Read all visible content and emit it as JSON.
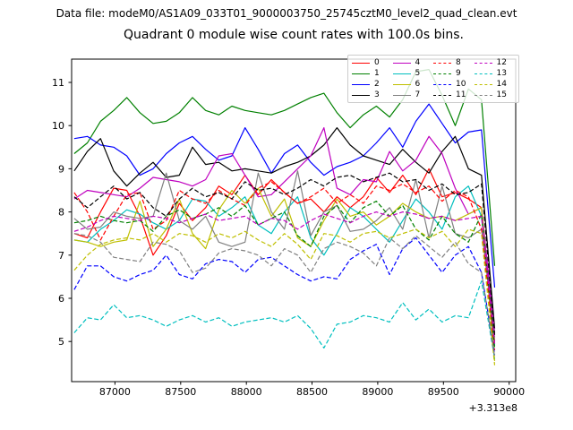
{
  "header": {
    "data_file": "Data file: modeM0/AS1A09_033T01_9000003750_25745cztM0_level2_quad_clean.evt"
  },
  "chart_data": {
    "type": "line",
    "title": "Quadrant 0 module wise count rates with 100.0s bins.",
    "xlabel": "",
    "ylabel": "",
    "x_offset_label": "+3.313e8",
    "bin_seconds": 100.0,
    "x_start": 86690,
    "x_step": 100,
    "xlim": [
      86670,
      90050
    ],
    "ylim": [
      4.07,
      11.54
    ],
    "xticks": [
      87000,
      87500,
      88000,
      88500,
      89000,
      89500,
      90000
    ],
    "yticks": [
      5,
      6,
      7,
      8,
      9,
      10,
      11
    ],
    "grid": false,
    "legend": {
      "position": "upper right",
      "columns": 4,
      "order": "column-major"
    },
    "series": [
      {
        "name": "0",
        "color": "#ff0000",
        "dash": false,
        "values": [
          7.5,
          7.4,
          8.0,
          8.55,
          8.5,
          7.9,
          7.0,
          7.45,
          8.2,
          7.8,
          8.1,
          8.6,
          8.4,
          8.85,
          8.4,
          8.75,
          8.45,
          8.2,
          8.3,
          8.0,
          8.35,
          8.1,
          8.35,
          8.8,
          8.45,
          8.85,
          8.4,
          9.0,
          8.35,
          8.45,
          8.3,
          8.1,
          5.0
        ]
      },
      {
        "name": "1",
        "color": "#008000",
        "dash": false,
        "values": [
          9.35,
          9.6,
          10.1,
          10.35,
          10.65,
          10.3,
          10.05,
          10.1,
          10.3,
          10.65,
          10.35,
          10.25,
          10.45,
          10.35,
          10.3,
          10.25,
          10.35,
          10.5,
          10.65,
          10.75,
          10.3,
          9.95,
          10.25,
          10.45,
          10.2,
          10.6,
          11.25,
          11.3,
          10.7,
          10.0,
          10.85,
          10.6,
          6.75
        ]
      },
      {
        "name": "2",
        "color": "#0000ff",
        "dash": false,
        "values": [
          9.7,
          9.75,
          9.55,
          9.5,
          9.3,
          8.85,
          9.0,
          9.35,
          9.6,
          9.75,
          9.45,
          9.2,
          9.3,
          9.95,
          9.45,
          8.9,
          9.35,
          9.55,
          9.15,
          8.85,
          9.05,
          9.15,
          9.3,
          9.6,
          9.95,
          9.5,
          10.1,
          10.5,
          10.05,
          9.6,
          9.85,
          9.9,
          6.25
        ]
      },
      {
        "name": "3",
        "color": "#000000",
        "dash": false,
        "values": [
          8.95,
          9.4,
          9.7,
          8.95,
          8.6,
          8.9,
          9.15,
          8.8,
          8.85,
          9.5,
          9.1,
          9.15,
          8.95,
          9.0,
          8.95,
          8.9,
          9.05,
          9.15,
          9.3,
          9.55,
          9.95,
          9.55,
          9.3,
          9.2,
          9.1,
          9.45,
          9.15,
          8.9,
          9.4,
          9.75,
          9.0,
          8.85,
          5.3
        ]
      },
      {
        "name": "4",
        "color": "#bf00bf",
        "dash": false,
        "values": [
          8.3,
          8.5,
          8.45,
          8.4,
          8.35,
          8.55,
          8.8,
          8.75,
          8.7,
          8.6,
          8.75,
          9.3,
          9.35,
          8.85,
          8.35,
          8.4,
          8.7,
          9.0,
          9.3,
          9.95,
          8.55,
          8.4,
          8.75,
          8.7,
          9.4,
          8.95,
          9.2,
          9.75,
          9.35,
          8.55,
          7.95,
          8.1,
          5.2
        ]
      },
      {
        "name": "5",
        "color": "#00bfbf",
        "dash": false,
        "values": [
          7.35,
          7.3,
          7.6,
          7.8,
          8.05,
          7.95,
          7.75,
          7.6,
          7.8,
          8.3,
          8.25,
          7.9,
          8.1,
          8.35,
          7.7,
          7.5,
          8.0,
          8.35,
          7.4,
          7.0,
          7.5,
          8.1,
          7.9,
          7.6,
          7.3,
          7.8,
          8.3,
          8.0,
          7.6,
          8.35,
          8.6,
          7.9,
          4.9
        ]
      },
      {
        "name": "6",
        "color": "#bfbf00",
        "dash": false,
        "values": [
          7.35,
          7.3,
          7.2,
          7.3,
          7.35,
          8.25,
          7.2,
          7.6,
          8.3,
          7.5,
          7.15,
          8.05,
          8.5,
          8.2,
          8.55,
          7.9,
          8.3,
          7.4,
          7.2,
          7.8,
          8.3,
          7.9,
          8.0,
          7.7,
          7.9,
          8.2,
          8.0,
          7.85,
          7.9,
          7.8,
          7.95,
          8.1,
          4.55
        ]
      },
      {
        "name": "7",
        "color": "#808080",
        "dash": false,
        "values": [
          7.85,
          7.6,
          7.65,
          8.0,
          7.9,
          7.85,
          7.9,
          8.9,
          7.8,
          7.6,
          7.9,
          7.3,
          7.2,
          7.3,
          8.9,
          8.0,
          7.6,
          8.95,
          7.45,
          8.0,
          8.15,
          7.55,
          7.6,
          7.8,
          8.1,
          7.6,
          8.75,
          7.4,
          8.6,
          7.5,
          7.4,
          7.6,
          5.1
        ]
      },
      {
        "name": "8",
        "color": "#ff0000",
        "dash": true,
        "values": [
          8.45,
          8.0,
          7.35,
          7.9,
          8.4,
          8.45,
          7.6,
          7.8,
          8.5,
          8.3,
          8.2,
          8.5,
          8.3,
          8.15,
          8.55,
          8.7,
          8.45,
          8.2,
          8.35,
          8.55,
          8.2,
          8.4,
          8.2,
          8.6,
          8.5,
          8.65,
          8.45,
          8.6,
          8.25,
          8.5,
          8.35,
          7.6,
          4.8
        ]
      },
      {
        "name": "9",
        "color": "#008000",
        "dash": true,
        "values": [
          7.75,
          7.8,
          7.9,
          7.8,
          7.75,
          7.8,
          7.55,
          7.9,
          8.05,
          7.85,
          7.95,
          8.1,
          7.9,
          8.15,
          7.7,
          7.85,
          8.0,
          7.45,
          7.2,
          7.9,
          8.15,
          7.75,
          8.1,
          8.25,
          7.9,
          8.15,
          7.6,
          7.35,
          7.9,
          7.5,
          7.3,
          7.95,
          4.85
        ]
      },
      {
        "name": "10",
        "color": "#0000ff",
        "dash": true,
        "values": [
          6.2,
          6.75,
          6.75,
          6.5,
          6.4,
          6.55,
          6.65,
          7.0,
          6.55,
          6.45,
          6.8,
          6.9,
          6.85,
          6.6,
          6.9,
          6.95,
          6.75,
          6.55,
          6.4,
          6.5,
          6.45,
          6.9,
          7.1,
          7.25,
          6.55,
          7.15,
          7.4,
          7.0,
          6.6,
          7.0,
          7.2,
          6.6,
          4.7
        ]
      },
      {
        "name": "11",
        "color": "#000000",
        "dash": true,
        "values": [
          8.35,
          8.1,
          8.35,
          8.6,
          8.3,
          8.45,
          8.1,
          7.9,
          8.3,
          8.55,
          8.35,
          8.45,
          8.3,
          8.7,
          8.5,
          8.55,
          8.4,
          8.55,
          8.75,
          8.6,
          8.8,
          8.85,
          8.7,
          8.8,
          8.9,
          8.7,
          8.75,
          8.5,
          8.65,
          8.4,
          8.45,
          8.65,
          5.15
        ]
      },
      {
        "name": "12",
        "color": "#bf00bf",
        "dash": true,
        "values": [
          7.55,
          7.65,
          7.8,
          7.9,
          7.85,
          7.8,
          7.9,
          7.85,
          7.75,
          7.85,
          7.95,
          7.8,
          7.85,
          7.9,
          7.7,
          7.85,
          7.8,
          7.6,
          7.8,
          7.95,
          7.85,
          7.75,
          7.9,
          8.0,
          7.9,
          8.0,
          7.95,
          7.85,
          7.9,
          7.8,
          7.85,
          7.9,
          4.95
        ]
      },
      {
        "name": "13",
        "color": "#00bfbf",
        "dash": true,
        "values": [
          5.2,
          5.55,
          5.5,
          5.85,
          5.55,
          5.6,
          5.5,
          5.35,
          5.5,
          5.6,
          5.45,
          5.55,
          5.35,
          5.45,
          5.5,
          5.55,
          5.45,
          5.6,
          5.3,
          4.85,
          5.4,
          5.45,
          5.6,
          5.55,
          5.45,
          5.9,
          5.5,
          5.75,
          5.45,
          5.6,
          5.55,
          6.4,
          4.6
        ]
      },
      {
        "name": "14",
        "color": "#bfbf00",
        "dash": true,
        "values": [
          6.65,
          7.0,
          7.25,
          7.35,
          7.4,
          7.35,
          7.5,
          7.3,
          7.5,
          7.45,
          7.3,
          7.5,
          7.4,
          7.55,
          7.35,
          7.2,
          7.5,
          7.25,
          6.9,
          7.5,
          7.45,
          7.3,
          7.5,
          7.55,
          7.4,
          7.5,
          7.6,
          7.4,
          7.55,
          7.2,
          7.6,
          7.5,
          4.45
        ]
      },
      {
        "name": "15",
        "color": "#808080",
        "dash": true,
        "values": [
          7.5,
          7.45,
          7.3,
          6.95,
          6.9,
          6.85,
          7.3,
          7.25,
          7.1,
          6.6,
          6.7,
          7.05,
          7.15,
          7.1,
          7.0,
          6.75,
          7.15,
          7.0,
          6.6,
          7.15,
          7.3,
          7.2,
          7.05,
          6.75,
          7.4,
          7.15,
          7.45,
          7.2,
          6.95,
          7.3,
          6.8,
          6.6,
          4.65
        ]
      }
    ]
  }
}
